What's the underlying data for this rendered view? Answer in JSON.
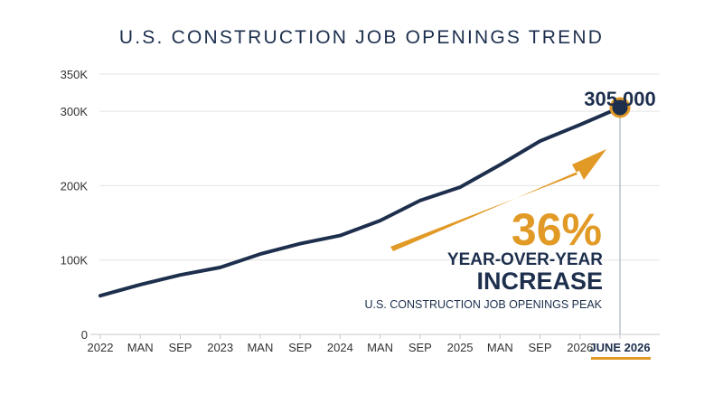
{
  "chart_data": {
    "type": "line",
    "title": "U.S. CONSTRUCTION JOB OPENINGS TREND",
    "x_labels": [
      "2022",
      "MAN",
      "SEP",
      "2023",
      "MAN",
      "SEP",
      "2024",
      "MAN",
      "SEP",
      "2025",
      "MAN",
      "SEP",
      "2026",
      "JUNE 2026"
    ],
    "y_ticks": [
      {
        "value": 0,
        "label": "0"
      },
      {
        "value": 100000,
        "label": "100K"
      },
      {
        "value": 200000,
        "label": "200K"
      },
      {
        "value": 300000,
        "label": "300K"
      },
      {
        "value": 350000,
        "label": "350K"
      }
    ],
    "ylim": [
      0,
      350000
    ],
    "grid": true,
    "series": [
      {
        "values": [
          52000,
          67000,
          80000,
          90000,
          108000,
          122000,
          133000,
          153000,
          180000,
          198000,
          228000,
          260000,
          282000,
          305000
        ]
      }
    ],
    "annotations": {
      "peak_value": "305,000",
      "percent": "36%",
      "line1": "YEAR-OVER-YEAR",
      "line2": "INCREASE",
      "caption": "U.S. CONSTRUCTION JOB OPENINGS PEAK"
    },
    "colors": {
      "line": "#1d2f4d",
      "accent": "#e29a26",
      "grid": "#e4e4e4",
      "text": "#1d2f4d"
    }
  }
}
